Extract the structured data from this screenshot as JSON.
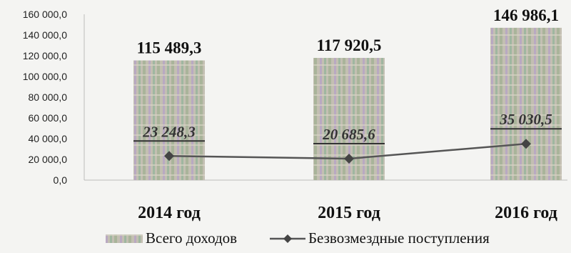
{
  "chart_data": {
    "type": "bar",
    "categories": [
      "2014 год",
      "2015 год",
      "2016 год"
    ],
    "ylim": [
      0,
      160000
    ],
    "yticks": [
      0,
      20000,
      40000,
      60000,
      80000,
      100000,
      120000,
      140000,
      160000
    ],
    "ytick_labels": [
      "0,0",
      "20 000,0",
      "40 000,0",
      "60 000,0",
      "80 000,0",
      "100 000,0",
      "120 000,0",
      "140 000,0",
      "160 000,0"
    ],
    "grid": false,
    "legend_position": "bottom",
    "series": [
      {
        "name": "Всего доходов",
        "kind": "bar",
        "values": [
          115489.3,
          117920.5,
          146986.1
        ],
        "labels": [
          "115 489,3",
          "117 920,5",
          "146 986,1"
        ],
        "color": "#b7b3a6"
      },
      {
        "name": "Безвозмездные поступления",
        "kind": "line",
        "values": [
          23248.3,
          20685.6,
          35030.5
        ],
        "labels": [
          "23 248,3",
          "20 685,6",
          "35 030,5"
        ],
        "color": "#5a5a5a"
      }
    ]
  }
}
